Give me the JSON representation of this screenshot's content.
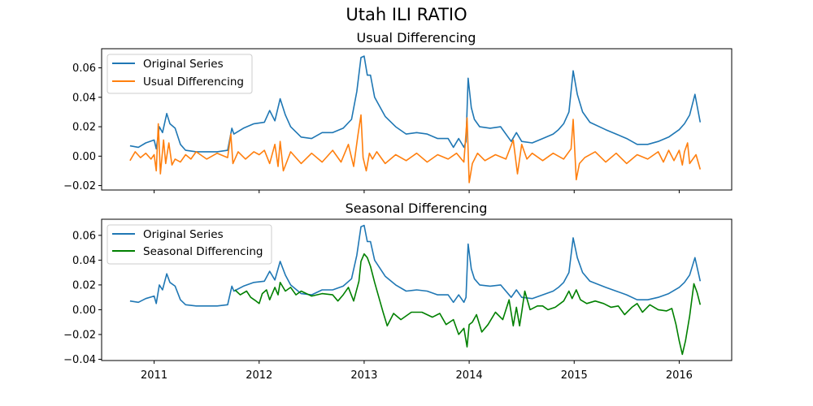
{
  "figure": {
    "suptitle": "Utah ILI RATIO"
  },
  "colors": {
    "original": "#1f77b4",
    "usual": "#ff7f0e",
    "seasonal": "#008000"
  },
  "chart_data": [
    {
      "type": "line",
      "title": "Usual Differencing",
      "xlabel": "",
      "ylabel": "",
      "xlim": [
        2010.5,
        2016.5
      ],
      "ylim": [
        -0.023,
        0.073
      ],
      "x_ticks": [
        2011,
        2012,
        2013,
        2014,
        2015,
        2016
      ],
      "x_tick_labels_shown": false,
      "y_ticks": [
        -0.02,
        0.0,
        0.02,
        0.04,
        0.06
      ],
      "y_tick_labels": [
        "−0.02",
        "0.00",
        "0.02",
        "0.04",
        "0.06"
      ],
      "grid": false,
      "legend": "top-left",
      "series": [
        {
          "name": "Original Series",
          "x": [
            2010.77,
            2010.85,
            2010.92,
            2011.0,
            2011.02,
            2011.05,
            2011.08,
            2011.12,
            2011.15,
            2011.2,
            2011.25,
            2011.3,
            2011.4,
            2011.5,
            2011.6,
            2011.7,
            2011.74,
            2011.76,
            2011.85,
            2011.95,
            2012.05,
            2012.1,
            2012.15,
            2012.2,
            2012.25,
            2012.3,
            2012.4,
            2012.5,
            2012.6,
            2012.7,
            2012.8,
            2012.88,
            2012.93,
            2012.97,
            2013.0,
            2013.03,
            2013.06,
            2013.1,
            2013.2,
            2013.3,
            2013.4,
            2013.5,
            2013.6,
            2013.7,
            2013.8,
            2013.85,
            2013.9,
            2013.95,
            2013.97,
            2013.99,
            2014.02,
            2014.05,
            2014.1,
            2014.2,
            2014.3,
            2014.4,
            2014.45,
            2014.5,
            2014.6,
            2014.7,
            2014.8,
            2014.85,
            2014.9,
            2014.95,
            2014.99,
            2015.03,
            2015.08,
            2015.15,
            2015.3,
            2015.4,
            2015.5,
            2015.6,
            2015.7,
            2015.8,
            2015.9,
            2016.0,
            2016.05,
            2016.1,
            2016.15,
            2016.2
          ],
          "values": [
            0.007,
            0.006,
            0.009,
            0.011,
            0.005,
            0.02,
            0.016,
            0.029,
            0.022,
            0.019,
            0.008,
            0.004,
            0.003,
            0.003,
            0.003,
            0.004,
            0.019,
            0.015,
            0.019,
            0.022,
            0.023,
            0.031,
            0.024,
            0.039,
            0.028,
            0.02,
            0.013,
            0.012,
            0.016,
            0.016,
            0.019,
            0.025,
            0.044,
            0.067,
            0.068,
            0.055,
            0.055,
            0.04,
            0.027,
            0.02,
            0.015,
            0.016,
            0.015,
            0.012,
            0.012,
            0.006,
            0.012,
            0.006,
            0.01,
            0.053,
            0.033,
            0.025,
            0.02,
            0.019,
            0.02,
            0.01,
            0.016,
            0.01,
            0.009,
            0.012,
            0.015,
            0.018,
            0.022,
            0.03,
            0.058,
            0.042,
            0.03,
            0.023,
            0.018,
            0.015,
            0.012,
            0.008,
            0.008,
            0.01,
            0.013,
            0.018,
            0.022,
            0.028,
            0.042,
            0.023
          ]
        },
        {
          "name": "Usual Differencing",
          "x": [
            2010.77,
            2010.82,
            2010.87,
            2010.92,
            2010.97,
            2011.0,
            2011.02,
            2011.04,
            2011.06,
            2011.09,
            2011.11,
            2011.14,
            2011.17,
            2011.2,
            2011.25,
            2011.3,
            2011.35,
            2011.4,
            2011.5,
            2011.6,
            2011.7,
            2011.73,
            2011.75,
            2011.8,
            2011.87,
            2011.95,
            2012.0,
            2012.05,
            2012.1,
            2012.15,
            2012.18,
            2012.2,
            2012.23,
            2012.3,
            2012.4,
            2012.5,
            2012.6,
            2012.7,
            2012.78,
            2012.85,
            2012.9,
            2012.94,
            2012.97,
            2012.99,
            2013.02,
            2013.05,
            2013.08,
            2013.12,
            2013.2,
            2013.3,
            2013.4,
            2013.5,
            2013.6,
            2013.7,
            2013.8,
            2013.88,
            2013.95,
            2013.98,
            2014.0,
            2014.03,
            2014.08,
            2014.15,
            2014.25,
            2014.35,
            2014.42,
            2014.46,
            2014.5,
            2014.55,
            2014.6,
            2014.7,
            2014.8,
            2014.9,
            2014.97,
            2014.99,
            2015.02,
            2015.05,
            2015.1,
            2015.2,
            2015.3,
            2015.4,
            2015.5,
            2015.6,
            2015.7,
            2015.8,
            2015.85,
            2015.9,
            2015.95,
            2016.0,
            2016.03,
            2016.05,
            2016.08,
            2016.1,
            2016.13,
            2016.16,
            2016.2
          ],
          "values": [
            -0.003,
            0.003,
            -0.001,
            0.002,
            -0.002,
            0.001,
            -0.01,
            0.022,
            -0.012,
            0.011,
            -0.005,
            0.009,
            -0.006,
            -0.002,
            -0.004,
            0.001,
            -0.002,
            0.003,
            -0.002,
            0.002,
            -0.001,
            0.015,
            -0.005,
            0.003,
            -0.002,
            0.003,
            0.001,
            0.004,
            -0.005,
            0.008,
            -0.007,
            0.01,
            -0.01,
            0.003,
            -0.005,
            0.002,
            -0.004,
            0.004,
            -0.004,
            0.008,
            -0.007,
            0.014,
            0.028,
            -0.001,
            -0.01,
            0.002,
            -0.002,
            0.003,
            -0.005,
            0.001,
            -0.003,
            0.002,
            -0.004,
            0.001,
            -0.002,
            0.002,
            -0.004,
            0.026,
            -0.018,
            -0.005,
            0.002,
            -0.003,
            0.001,
            -0.002,
            0.011,
            -0.012,
            0.008,
            -0.002,
            0.002,
            -0.003,
            0.002,
            -0.002,
            0.005,
            0.025,
            -0.016,
            -0.005,
            -0.001,
            0.003,
            -0.004,
            0.002,
            -0.005,
            0.001,
            -0.002,
            0.003,
            -0.004,
            0.004,
            -0.003,
            0.004,
            -0.006,
            0.003,
            0.009,
            -0.005,
            -0.002,
            0.001,
            -0.009
          ]
        }
      ]
    },
    {
      "type": "line",
      "title": "Seasonal Differencing",
      "xlabel": "",
      "ylabel": "",
      "xlim": [
        2010.5,
        2016.5
      ],
      "ylim": [
        -0.041,
        0.073
      ],
      "x_ticks": [
        2011,
        2012,
        2013,
        2014,
        2015,
        2016
      ],
      "x_tick_labels": [
        "2011",
        "2012",
        "2013",
        "2014",
        "2015",
        "2016"
      ],
      "y_ticks": [
        -0.04,
        -0.02,
        0.0,
        0.02,
        0.04,
        0.06
      ],
      "y_tick_labels": [
        "−0.04",
        "−0.02",
        "0.00",
        "0.02",
        "0.04",
        "0.06"
      ],
      "grid": false,
      "legend": "top-left",
      "series": [
        {
          "name": "Original Series",
          "x": [
            2010.77,
            2010.85,
            2010.92,
            2011.0,
            2011.02,
            2011.05,
            2011.08,
            2011.12,
            2011.15,
            2011.2,
            2011.25,
            2011.3,
            2011.4,
            2011.5,
            2011.6,
            2011.7,
            2011.74,
            2011.76,
            2011.85,
            2011.95,
            2012.05,
            2012.1,
            2012.15,
            2012.2,
            2012.25,
            2012.3,
            2012.4,
            2012.5,
            2012.6,
            2012.7,
            2012.8,
            2012.88,
            2012.93,
            2012.97,
            2013.0,
            2013.03,
            2013.06,
            2013.1,
            2013.2,
            2013.3,
            2013.4,
            2013.5,
            2013.6,
            2013.7,
            2013.8,
            2013.85,
            2013.9,
            2013.95,
            2013.97,
            2013.99,
            2014.02,
            2014.05,
            2014.1,
            2014.2,
            2014.3,
            2014.4,
            2014.45,
            2014.5,
            2014.6,
            2014.7,
            2014.8,
            2014.85,
            2014.9,
            2014.95,
            2014.99,
            2015.03,
            2015.08,
            2015.15,
            2015.3,
            2015.4,
            2015.5,
            2015.6,
            2015.7,
            2015.8,
            2015.9,
            2016.0,
            2016.05,
            2016.1,
            2016.15,
            2016.2
          ],
          "values": [
            0.007,
            0.006,
            0.009,
            0.011,
            0.005,
            0.02,
            0.016,
            0.029,
            0.022,
            0.019,
            0.008,
            0.004,
            0.003,
            0.003,
            0.003,
            0.004,
            0.019,
            0.015,
            0.019,
            0.022,
            0.023,
            0.031,
            0.024,
            0.039,
            0.028,
            0.02,
            0.013,
            0.012,
            0.016,
            0.016,
            0.019,
            0.025,
            0.044,
            0.067,
            0.068,
            0.055,
            0.055,
            0.04,
            0.027,
            0.02,
            0.015,
            0.016,
            0.015,
            0.012,
            0.012,
            0.006,
            0.012,
            0.006,
            0.01,
            0.053,
            0.033,
            0.025,
            0.02,
            0.019,
            0.02,
            0.01,
            0.016,
            0.01,
            0.009,
            0.012,
            0.015,
            0.018,
            0.022,
            0.03,
            0.058,
            0.042,
            0.03,
            0.023,
            0.018,
            0.015,
            0.012,
            0.008,
            0.008,
            0.01,
            0.013,
            0.018,
            0.022,
            0.028,
            0.042,
            0.023
          ]
        },
        {
          "name": "Seasonal Differencing",
          "x": [
            2011.77,
            2011.82,
            2011.88,
            2011.92,
            2011.97,
            2012.0,
            2012.03,
            2012.07,
            2012.1,
            2012.15,
            2012.18,
            2012.2,
            2012.25,
            2012.3,
            2012.35,
            2012.4,
            2012.5,
            2012.6,
            2012.7,
            2012.75,
            2012.8,
            2012.85,
            2012.9,
            2012.95,
            2012.97,
            2013.0,
            2013.03,
            2013.06,
            2013.1,
            2013.14,
            2013.18,
            2013.22,
            2013.28,
            2013.35,
            2013.45,
            2013.55,
            2013.65,
            2013.72,
            2013.78,
            2013.85,
            2013.9,
            2013.95,
            2013.98,
            2014.0,
            2014.03,
            2014.07,
            2014.12,
            2014.18,
            2014.25,
            2014.32,
            2014.38,
            2014.42,
            2014.45,
            2014.48,
            2014.5,
            2014.53,
            2014.58,
            2014.65,
            2014.7,
            2014.75,
            2014.82,
            2014.9,
            2014.95,
            2014.98,
            2015.02,
            2015.06,
            2015.12,
            2015.2,
            2015.28,
            2015.35,
            2015.42,
            2015.48,
            2015.55,
            2015.6,
            2015.65,
            2015.72,
            2015.8,
            2015.88,
            2015.93,
            2015.97,
            2016.0,
            2016.03,
            2016.06,
            2016.1,
            2016.14,
            2016.17,
            2016.2
          ],
          "values": [
            0.016,
            0.012,
            0.015,
            0.01,
            0.007,
            0.005,
            0.013,
            0.016,
            0.008,
            0.018,
            0.012,
            0.022,
            0.015,
            0.018,
            0.012,
            0.015,
            0.011,
            0.013,
            0.012,
            0.007,
            0.012,
            0.018,
            0.007,
            0.023,
            0.039,
            0.045,
            0.042,
            0.035,
            0.022,
            0.01,
            -0.002,
            -0.013,
            -0.003,
            -0.008,
            -0.002,
            -0.002,
            -0.006,
            -0.003,
            -0.012,
            -0.008,
            -0.02,
            -0.015,
            -0.03,
            -0.012,
            -0.01,
            -0.004,
            -0.018,
            -0.012,
            -0.002,
            -0.008,
            0.008,
            -0.013,
            0.002,
            -0.013,
            -0.002,
            0.015,
            0.0,
            0.003,
            0.003,
            0.0,
            0.002,
            0.007,
            0.015,
            0.009,
            0.016,
            0.008,
            0.005,
            0.007,
            0.005,
            0.002,
            0.003,
            -0.004,
            0.002,
            0.005,
            -0.002,
            0.004,
            0.0,
            -0.001,
            0.001,
            -0.012,
            -0.025,
            -0.036,
            -0.025,
            -0.005,
            0.021,
            0.014,
            0.004
          ]
        }
      ]
    }
  ]
}
